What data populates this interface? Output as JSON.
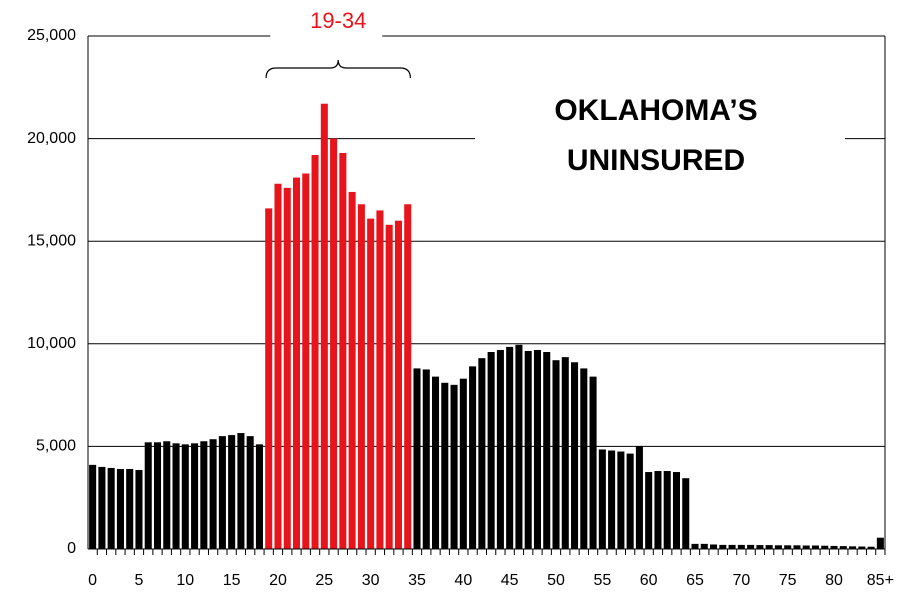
{
  "chart_data": {
    "type": "bar",
    "title_lines": [
      "OKLAHOMA’S",
      "UNINSURED"
    ],
    "annotation": "19-34",
    "categories": [
      "0",
      null,
      null,
      null,
      null,
      "5",
      null,
      null,
      null,
      null,
      "10",
      null,
      null,
      null,
      null,
      "15",
      null,
      null,
      null,
      null,
      "20",
      null,
      null,
      null,
      null,
      "25",
      null,
      null,
      null,
      null,
      "30",
      null,
      null,
      null,
      null,
      "35",
      null,
      null,
      null,
      null,
      "40",
      null,
      null,
      null,
      null,
      "45",
      null,
      null,
      null,
      null,
      "50",
      null,
      null,
      null,
      null,
      "55",
      null,
      null,
      null,
      null,
      "60",
      null,
      null,
      null,
      null,
      "65",
      null,
      null,
      null,
      null,
      "70",
      null,
      null,
      null,
      null,
      "75",
      null,
      null,
      null,
      null,
      "80",
      null,
      null,
      null,
      null,
      "85+"
    ],
    "values": [
      4100,
      4000,
      3950,
      3900,
      3900,
      3850,
      5200,
      5200,
      5250,
      5150,
      5100,
      5150,
      5250,
      5350,
      5500,
      5550,
      5650,
      5500,
      5100,
      16600,
      17800,
      17600,
      18100,
      18300,
      19200,
      21700,
      20000,
      19300,
      17400,
      16800,
      16100,
      16500,
      15800,
      16000,
      16800,
      8800,
      8750,
      8400,
      8100,
      8000,
      8300,
      8900,
      9300,
      9600,
      9700,
      9850,
      9950,
      9650,
      9700,
      9600,
      9200,
      9350,
      9100,
      8800,
      8400,
      4850,
      4800,
      4750,
      4650,
      5000,
      3750,
      3800,
      3800,
      3750,
      3450,
      250,
      250,
      220,
      200,
      200,
      200,
      200,
      190,
      190,
      180,
      180,
      180,
      170,
      170,
      160,
      150,
      140,
      130,
      120,
      110,
      550
    ],
    "color": "#000000",
    "highlight_color": "#e8141b",
    "highlight_range": [
      19,
      34
    ],
    "ylim": [
      0,
      25000
    ],
    "yticks": [
      {
        "value": 0,
        "label": "0"
      },
      {
        "value": 5000,
        "label": "5,000"
      },
      {
        "value": 10000,
        "label": "10,000"
      },
      {
        "value": 15000,
        "label": "15,000"
      },
      {
        "value": 20000,
        "label": "20,000"
      },
      {
        "value": 25000,
        "label": "25,000"
      }
    ],
    "grid": true
  }
}
